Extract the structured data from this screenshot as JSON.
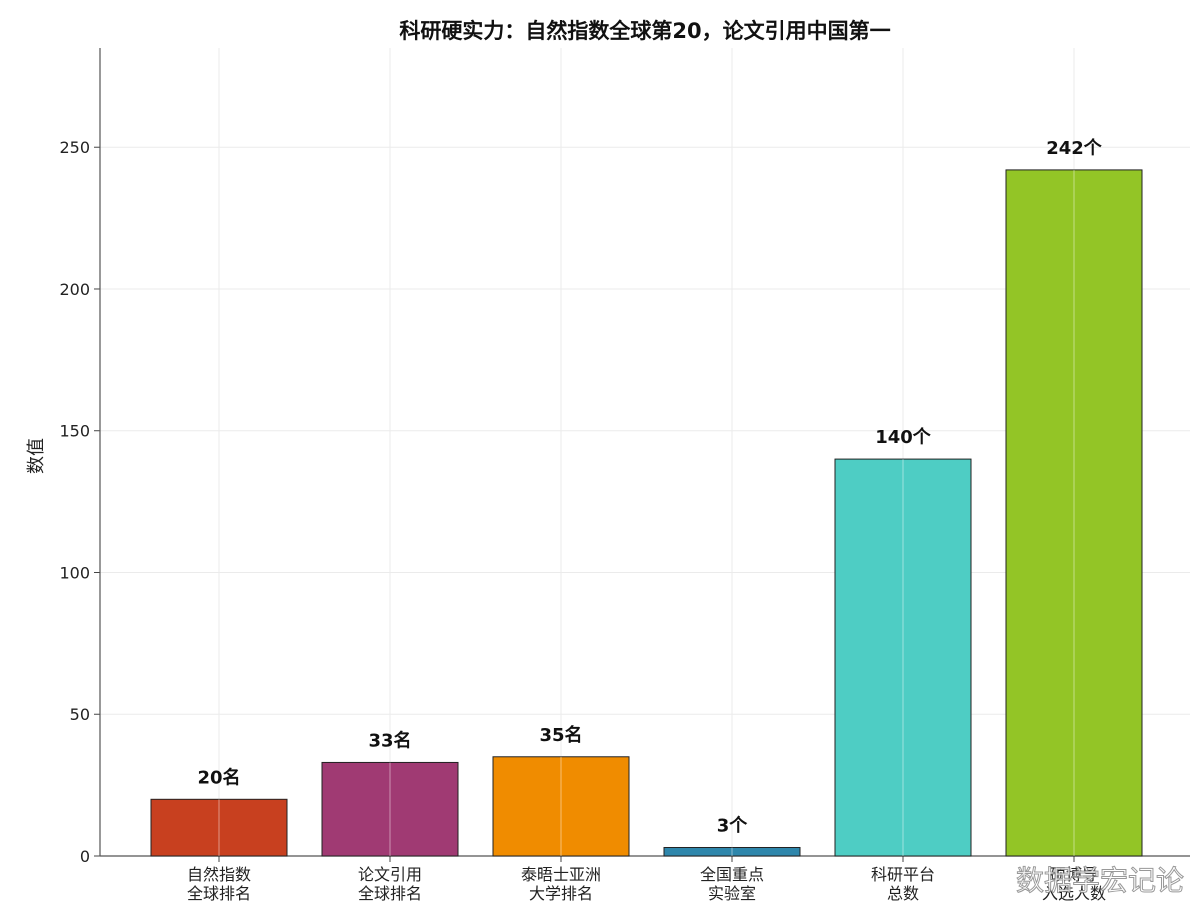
{
  "chart_data": {
    "type": "bar",
    "title": "科研硬实力：自然指数全球第20，论文引用中国第一",
    "ylabel": "数值",
    "xlabel": "",
    "ylim": [
      0,
      285
    ],
    "yticks": [
      0,
      50,
      100,
      150,
      200,
      250
    ],
    "grid": true,
    "categories": [
      [
        "自然指数",
        "全球排名"
      ],
      [
        "论文引用",
        "全球排名"
      ],
      [
        "泰晤士亚洲",
        "大学排名"
      ],
      [
        "全国重点",
        "实验室"
      ],
      [
        "科研平台",
        "总数"
      ],
      [
        "硕博导",
        "入选人数"
      ]
    ],
    "values": [
      20,
      33,
      35,
      3,
      140,
      242
    ],
    "data_labels": [
      "20名",
      "33名",
      "35名",
      "3个",
      "140个",
      "242个"
    ],
    "colors": [
      "#C8401F",
      "#A03A73",
      "#F08C00",
      "#2E86AB",
      "#4ECDC4",
      "#93C526"
    ]
  },
  "watermark": "数据学宏记论"
}
